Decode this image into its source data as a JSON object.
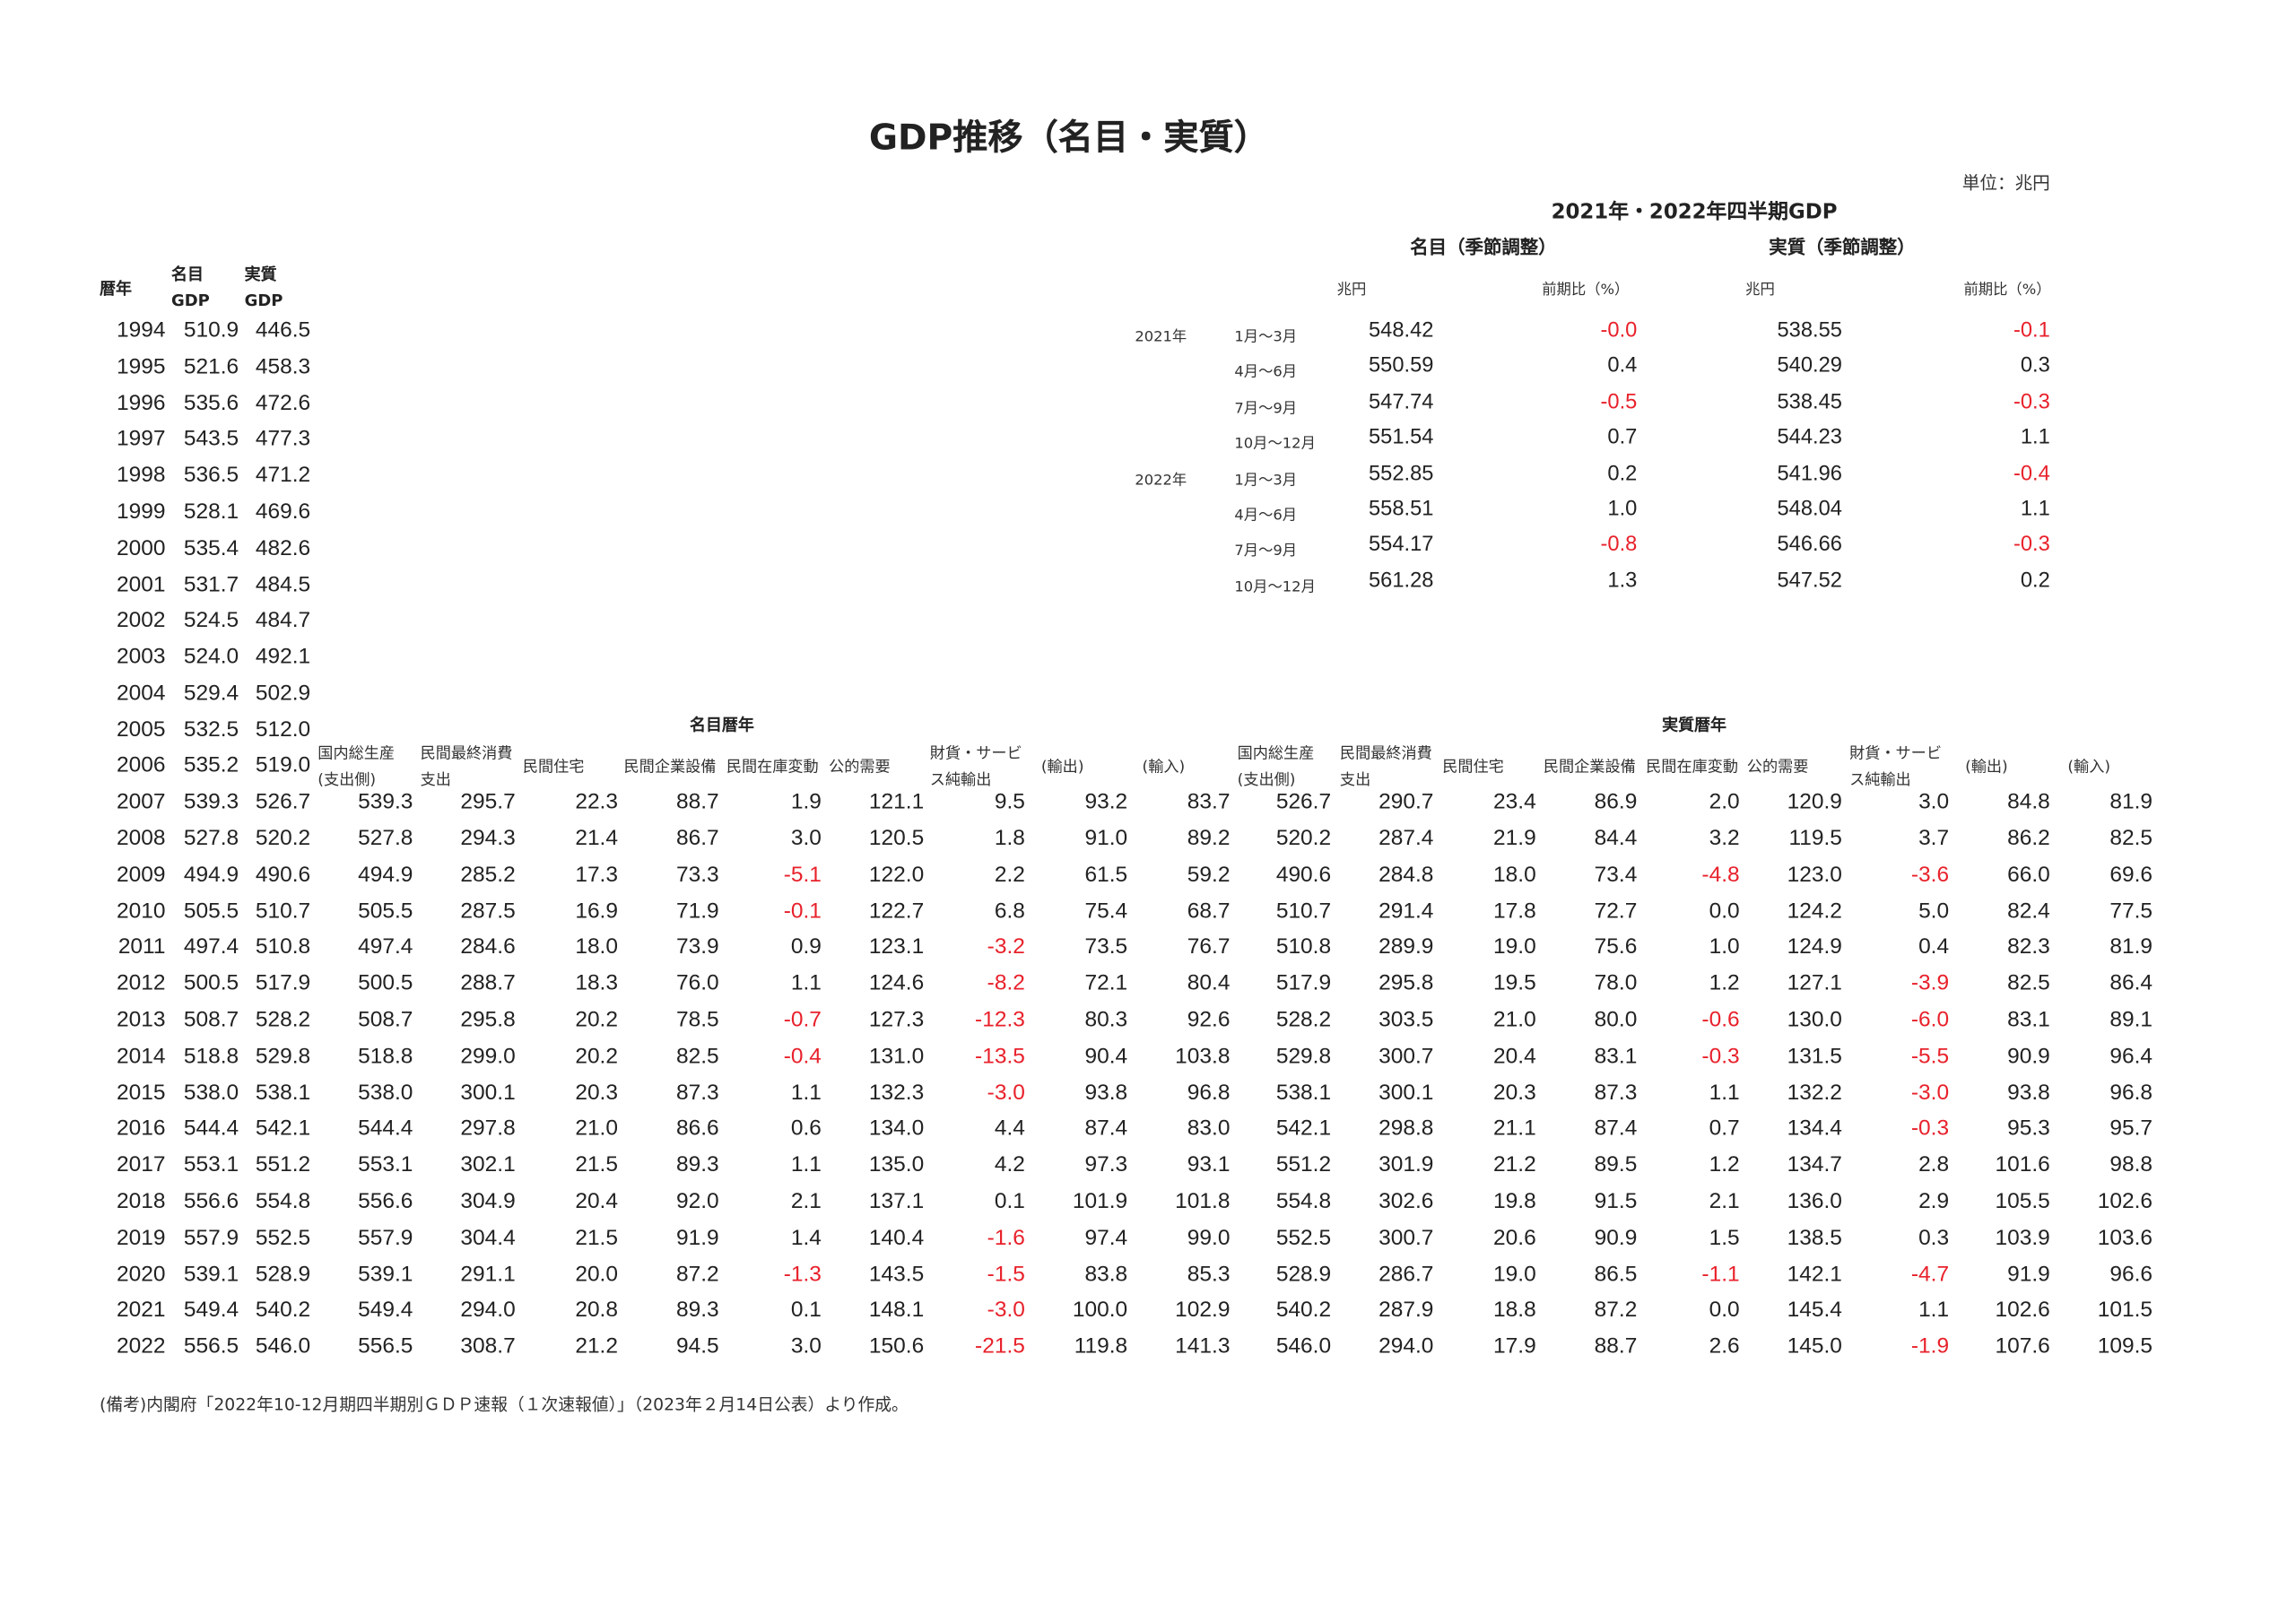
{
  "title": "GDP推移（名目・実質）",
  "unit": "単位：兆円",
  "colors": {
    "negative": "#e8212b",
    "text": "#222222"
  },
  "quarterly": {
    "title": "2021年・2022年四半期GDP",
    "nominal_header": "名目（季節調整）",
    "real_header": "実質（季節調整）",
    "col_headers": [
      "兆円",
      "前期比（%）",
      "兆円",
      "前期比（%）"
    ],
    "rows": [
      {
        "year": "2021年",
        "quarter": "1月～3月",
        "nominal": "548.42",
        "nominal_pct": "-0.0",
        "real": "538.55",
        "real_pct": "-0.1"
      },
      {
        "year": "",
        "quarter": "4月～6月",
        "nominal": "550.59",
        "nominal_pct": "0.4",
        "real": "540.29",
        "real_pct": "0.3"
      },
      {
        "year": "",
        "quarter": "7月～9月",
        "nominal": "547.74",
        "nominal_pct": "-0.5",
        "real": "538.45",
        "real_pct": "-0.3"
      },
      {
        "year": "",
        "quarter": "10月～12月",
        "nominal": "551.54",
        "nominal_pct": "0.7",
        "real": "544.23",
        "real_pct": "1.1"
      },
      {
        "year": "2022年",
        "quarter": "1月～3月",
        "nominal": "552.85",
        "nominal_pct": "0.2",
        "real": "541.96",
        "real_pct": "-0.4"
      },
      {
        "year": "",
        "quarter": "4月～6月",
        "nominal": "558.51",
        "nominal_pct": "1.0",
        "real": "548.04",
        "real_pct": "1.1"
      },
      {
        "year": "",
        "quarter": "7月～9月",
        "nominal": "554.17",
        "nominal_pct": "-0.8",
        "real": "546.66",
        "real_pct": "-0.3"
      },
      {
        "year": "",
        "quarter": "10月～12月",
        "nominal": "561.28",
        "nominal_pct": "1.3",
        "real": "547.52",
        "real_pct": "0.2"
      }
    ]
  },
  "annual": {
    "headers": {
      "year": "暦年",
      "nominal": [
        "名目",
        "GDP"
      ],
      "real": [
        "実質",
        "GDP"
      ]
    },
    "nominal_section": "名目暦年",
    "real_section": "実質暦年",
    "detail_headers": [
      [
        "国内総生産",
        "(支出側)"
      ],
      [
        "民間最終消費",
        "支出"
      ],
      [
        "民間住宅",
        ""
      ],
      [
        "民間企業設備",
        ""
      ],
      [
        "民間在庫変動",
        ""
      ],
      [
        "公的需要",
        ""
      ],
      [
        "財貨・サービ",
        "ス純輸出"
      ],
      [
        "(輸出)",
        ""
      ],
      [
        "(輸入)",
        ""
      ]
    ],
    "rows": [
      {
        "year": "1994",
        "nominal": "510.9",
        "real": "446.5"
      },
      {
        "year": "1995",
        "nominal": "521.6",
        "real": "458.3"
      },
      {
        "year": "1996",
        "nominal": "535.6",
        "real": "472.6"
      },
      {
        "year": "1997",
        "nominal": "543.5",
        "real": "477.3"
      },
      {
        "year": "1998",
        "nominal": "536.5",
        "real": "471.2"
      },
      {
        "year": "1999",
        "nominal": "528.1",
        "real": "469.6"
      },
      {
        "year": "2000",
        "nominal": "535.4",
        "real": "482.6"
      },
      {
        "year": "2001",
        "nominal": "531.7",
        "real": "484.5"
      },
      {
        "year": "2002",
        "nominal": "524.5",
        "real": "484.7"
      },
      {
        "year": "2003",
        "nominal": "524.0",
        "real": "492.1"
      },
      {
        "year": "2004",
        "nominal": "529.4",
        "real": "502.9"
      },
      {
        "year": "2005",
        "nominal": "532.5",
        "real": "512.0"
      },
      {
        "year": "2006",
        "nominal": "535.2",
        "real": "519.0"
      },
      {
        "year": "2007",
        "nominal": "539.3",
        "real": "526.7",
        "nominal_detail": [
          "539.3",
          "295.7",
          "22.3",
          "88.7",
          "1.9",
          "121.1",
          "9.5",
          "93.2",
          "83.7"
        ],
        "real_detail": [
          "526.7",
          "290.7",
          "23.4",
          "86.9",
          "2.0",
          "120.9",
          "3.0",
          "84.8",
          "81.9"
        ]
      },
      {
        "year": "2008",
        "nominal": "527.8",
        "real": "520.2",
        "nominal_detail": [
          "527.8",
          "294.3",
          "21.4",
          "86.7",
          "3.0",
          "120.5",
          "1.8",
          "91.0",
          "89.2"
        ],
        "real_detail": [
          "520.2",
          "287.4",
          "21.9",
          "84.4",
          "3.2",
          "119.5",
          "3.7",
          "86.2",
          "82.5"
        ]
      },
      {
        "year": "2009",
        "nominal": "494.9",
        "real": "490.6",
        "nominal_detail": [
          "494.9",
          "285.2",
          "17.3",
          "73.3",
          "-5.1",
          "122.0",
          "2.2",
          "61.5",
          "59.2"
        ],
        "real_detail": [
          "490.6",
          "284.8",
          "18.0",
          "73.4",
          "-4.8",
          "123.0",
          "-3.6",
          "66.0",
          "69.6"
        ]
      },
      {
        "year": "2010",
        "nominal": "505.5",
        "real": "510.7",
        "nominal_detail": [
          "505.5",
          "287.5",
          "16.9",
          "71.9",
          "-0.1",
          "122.7",
          "6.8",
          "75.4",
          "68.7"
        ],
        "real_detail": [
          "510.7",
          "291.4",
          "17.8",
          "72.7",
          "0.0",
          "124.2",
          "5.0",
          "82.4",
          "77.5"
        ]
      },
      {
        "year": "2011",
        "nominal": "497.4",
        "real": "510.8",
        "nominal_detail": [
          "497.4",
          "284.6",
          "18.0",
          "73.9",
          "0.9",
          "123.1",
          "-3.2",
          "73.5",
          "76.7"
        ],
        "real_detail": [
          "510.8",
          "289.9",
          "19.0",
          "75.6",
          "1.0",
          "124.9",
          "0.4",
          "82.3",
          "81.9"
        ]
      },
      {
        "year": "2012",
        "nominal": "500.5",
        "real": "517.9",
        "nominal_detail": [
          "500.5",
          "288.7",
          "18.3",
          "76.0",
          "1.1",
          "124.6",
          "-8.2",
          "72.1",
          "80.4"
        ],
        "real_detail": [
          "517.9",
          "295.8",
          "19.5",
          "78.0",
          "1.2",
          "127.1",
          "-3.9",
          "82.5",
          "86.4"
        ]
      },
      {
        "year": "2013",
        "nominal": "508.7",
        "real": "528.2",
        "nominal_detail": [
          "508.7",
          "295.8",
          "20.2",
          "78.5",
          "-0.7",
          "127.3",
          "-12.3",
          "80.3",
          "92.6"
        ],
        "real_detail": [
          "528.2",
          "303.5",
          "21.0",
          "80.0",
          "-0.6",
          "130.0",
          "-6.0",
          "83.1",
          "89.1"
        ]
      },
      {
        "year": "2014",
        "nominal": "518.8",
        "real": "529.8",
        "nominal_detail": [
          "518.8",
          "299.0",
          "20.2",
          "82.5",
          "-0.4",
          "131.0",
          "-13.5",
          "90.4",
          "103.8"
        ],
        "real_detail": [
          "529.8",
          "300.7",
          "20.4",
          "83.1",
          "-0.3",
          "131.5",
          "-5.5",
          "90.9",
          "96.4"
        ]
      },
      {
        "year": "2015",
        "nominal": "538.0",
        "real": "538.1",
        "nominal_detail": [
          "538.0",
          "300.1",
          "20.3",
          "87.3",
          "1.1",
          "132.3",
          "-3.0",
          "93.8",
          "96.8"
        ],
        "real_detail": [
          "538.1",
          "300.1",
          "20.3",
          "87.3",
          "1.1",
          "132.2",
          "-3.0",
          "93.8",
          "96.8"
        ]
      },
      {
        "year": "2016",
        "nominal": "544.4",
        "real": "542.1",
        "nominal_detail": [
          "544.4",
          "297.8",
          "21.0",
          "86.6",
          "0.6",
          "134.0",
          "4.4",
          "87.4",
          "83.0"
        ],
        "real_detail": [
          "542.1",
          "298.8",
          "21.1",
          "87.4",
          "0.7",
          "134.4",
          "-0.3",
          "95.3",
          "95.7"
        ]
      },
      {
        "year": "2017",
        "nominal": "553.1",
        "real": "551.2",
        "nominal_detail": [
          "553.1",
          "302.1",
          "21.5",
          "89.3",
          "1.1",
          "135.0",
          "4.2",
          "97.3",
          "93.1"
        ],
        "real_detail": [
          "551.2",
          "301.9",
          "21.2",
          "89.5",
          "1.2",
          "134.7",
          "2.8",
          "101.6",
          "98.8"
        ]
      },
      {
        "year": "2018",
        "nominal": "556.6",
        "real": "554.8",
        "nominal_detail": [
          "556.6",
          "304.9",
          "20.4",
          "92.0",
          "2.1",
          "137.1",
          "0.1",
          "101.9",
          "101.8"
        ],
        "real_detail": [
          "554.8",
          "302.6",
          "19.8",
          "91.5",
          "2.1",
          "136.0",
          "2.9",
          "105.5",
          "102.6"
        ]
      },
      {
        "year": "2019",
        "nominal": "557.9",
        "real": "552.5",
        "nominal_detail": [
          "557.9",
          "304.4",
          "21.5",
          "91.9",
          "1.4",
          "140.4",
          "-1.6",
          "97.4",
          "99.0"
        ],
        "real_detail": [
          "552.5",
          "300.7",
          "20.6",
          "90.9",
          "1.5",
          "138.5",
          "0.3",
          "103.9",
          "103.6"
        ]
      },
      {
        "year": "2020",
        "nominal": "539.1",
        "real": "528.9",
        "nominal_detail": [
          "539.1",
          "291.1",
          "20.0",
          "87.2",
          "-1.3",
          "143.5",
          "-1.5",
          "83.8",
          "85.3"
        ],
        "real_detail": [
          "528.9",
          "286.7",
          "19.0",
          "86.5",
          "-1.1",
          "142.1",
          "-4.7",
          "91.9",
          "96.6"
        ]
      },
      {
        "year": "2021",
        "nominal": "549.4",
        "real": "540.2",
        "nominal_detail": [
          "549.4",
          "294.0",
          "20.8",
          "89.3",
          "0.1",
          "148.1",
          "-3.0",
          "100.0",
          "102.9"
        ],
        "real_detail": [
          "540.2",
          "287.9",
          "18.8",
          "87.2",
          "0.0",
          "145.4",
          "1.1",
          "102.6",
          "101.5"
        ]
      },
      {
        "year": "2022",
        "nominal": "556.5",
        "real": "546.0",
        "nominal_detail": [
          "556.5",
          "308.7",
          "21.2",
          "94.5",
          "3.0",
          "150.6",
          "-21.5",
          "119.8",
          "141.3"
        ],
        "real_detail": [
          "546.0",
          "294.0",
          "17.9",
          "88.7",
          "2.6",
          "145.0",
          "-1.9",
          "107.6",
          "109.5"
        ]
      }
    ]
  },
  "footnote": "(備考)内閣府「2022年10-12月期四半期別ＧＤＰ速報（１次速報値）」（2023年２月14日公表）より作成。"
}
